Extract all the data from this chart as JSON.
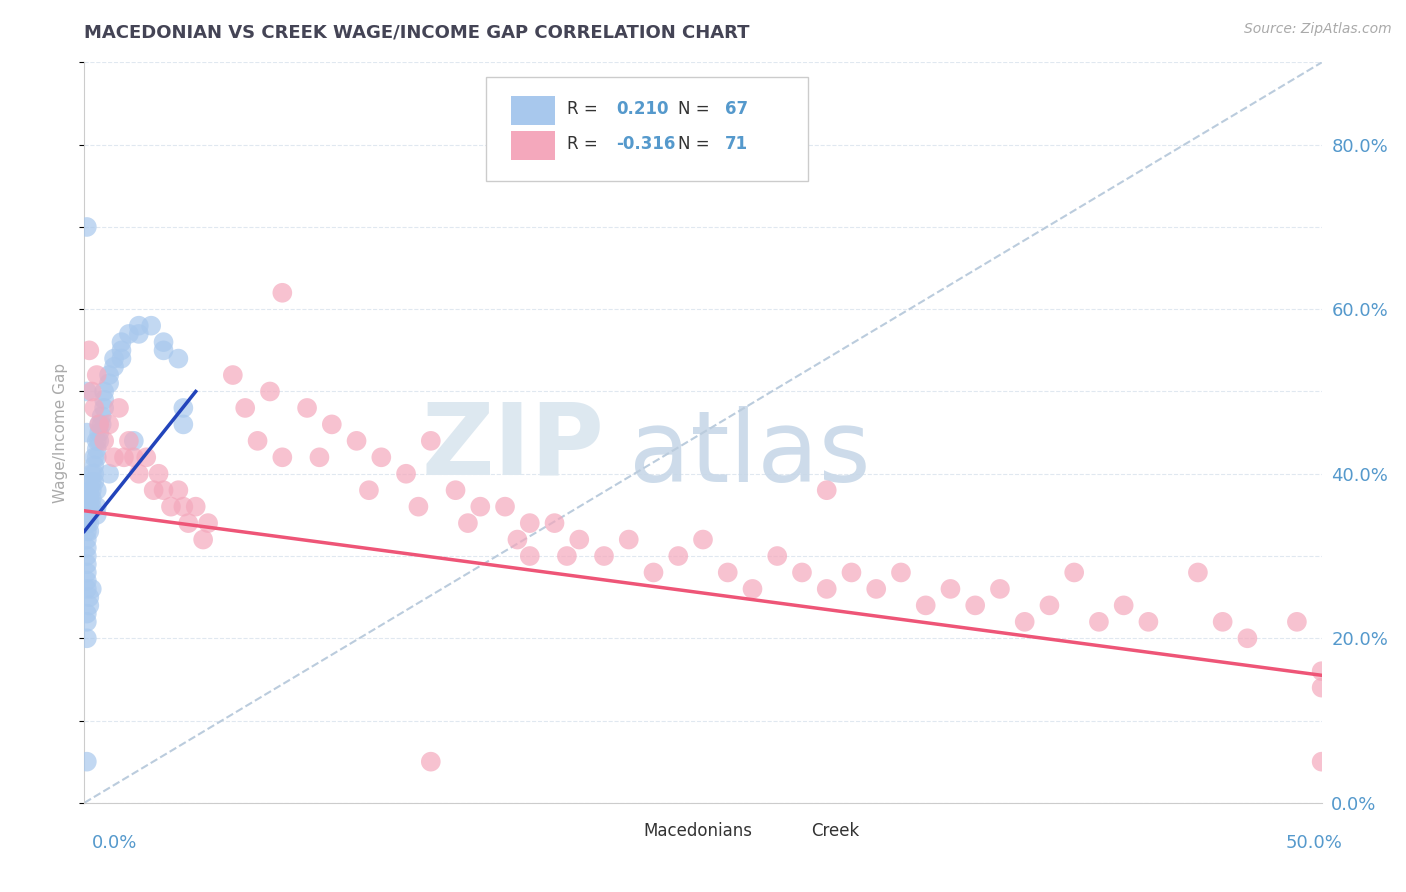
{
  "title": "MACEDONIAN VS CREEK WAGE/INCOME GAP CORRELATION CHART",
  "source": "Source: ZipAtlas.com",
  "ylabel": "Wage/Income Gap",
  "right_ytick_vals": [
    0.0,
    0.2,
    0.4,
    0.6,
    0.8
  ],
  "xlim": [
    0.0,
    0.5
  ],
  "ylim": [
    0.0,
    0.9
  ],
  "macedonian_color": "#a8c8ed",
  "creek_color": "#f4a8bc",
  "macedonian_trend_color": "#2244bb",
  "creek_trend_color": "#ee5577",
  "ref_line_color": "#bbccdd",
  "background_color": "#ffffff",
  "grid_color": "#e0e8f0",
  "title_color": "#444455",
  "axis_label_color": "#5599cc",
  "legend_text_color": "#5599cc",
  "watermark_zip_color": "#dde8f0",
  "watermark_atlas_color": "#c8d8e8",
  "macedonian_scatter_x": [
    0.001,
    0.001,
    0.001,
    0.001,
    0.001,
    0.001,
    0.001,
    0.001,
    0.001,
    0.001,
    0.002,
    0.002,
    0.002,
    0.002,
    0.002,
    0.002,
    0.003,
    0.003,
    0.003,
    0.003,
    0.003,
    0.004,
    0.004,
    0.004,
    0.004,
    0.005,
    0.005,
    0.005,
    0.006,
    0.006,
    0.006,
    0.007,
    0.007,
    0.008,
    0.008,
    0.008,
    0.01,
    0.01,
    0.012,
    0.012,
    0.015,
    0.015,
    0.015,
    0.018,
    0.022,
    0.022,
    0.027,
    0.032,
    0.032,
    0.038,
    0.001,
    0.001,
    0.001,
    0.002,
    0.002,
    0.003,
    0.04,
    0.04,
    0.02,
    0.01,
    0.005,
    0.005,
    0.005,
    0.001,
    0.001,
    0.001,
    0.001
  ],
  "macedonian_scatter_y": [
    0.36,
    0.34,
    0.33,
    0.32,
    0.31,
    0.3,
    0.29,
    0.28,
    0.27,
    0.26,
    0.38,
    0.37,
    0.36,
    0.35,
    0.34,
    0.33,
    0.4,
    0.39,
    0.38,
    0.37,
    0.36,
    0.42,
    0.41,
    0.4,
    0.39,
    0.44,
    0.43,
    0.42,
    0.46,
    0.45,
    0.44,
    0.47,
    0.46,
    0.5,
    0.49,
    0.48,
    0.52,
    0.51,
    0.54,
    0.53,
    0.56,
    0.55,
    0.54,
    0.57,
    0.58,
    0.57,
    0.58,
    0.56,
    0.55,
    0.54,
    0.05,
    0.22,
    0.23,
    0.24,
    0.25,
    0.26,
    0.48,
    0.46,
    0.44,
    0.4,
    0.38,
    0.36,
    0.35,
    0.7,
    0.5,
    0.45,
    0.2
  ],
  "creek_scatter_x": [
    0.002,
    0.003,
    0.004,
    0.005,
    0.006,
    0.008,
    0.01,
    0.012,
    0.014,
    0.016,
    0.018,
    0.02,
    0.022,
    0.025,
    0.028,
    0.03,
    0.032,
    0.035,
    0.038,
    0.04,
    0.042,
    0.045,
    0.048,
    0.05,
    0.06,
    0.065,
    0.07,
    0.075,
    0.08,
    0.09,
    0.095,
    0.1,
    0.11,
    0.115,
    0.12,
    0.13,
    0.135,
    0.14,
    0.15,
    0.155,
    0.16,
    0.17,
    0.175,
    0.18,
    0.19,
    0.195,
    0.2,
    0.21,
    0.22,
    0.23,
    0.24,
    0.25,
    0.26,
    0.27,
    0.28,
    0.29,
    0.3,
    0.31,
    0.32,
    0.33,
    0.34,
    0.35,
    0.36,
    0.37,
    0.38,
    0.39,
    0.4,
    0.41,
    0.42,
    0.43,
    0.45,
    0.46,
    0.47,
    0.49,
    0.5
  ],
  "creek_scatter_y": [
    0.55,
    0.5,
    0.48,
    0.52,
    0.46,
    0.44,
    0.46,
    0.42,
    0.48,
    0.42,
    0.44,
    0.42,
    0.4,
    0.42,
    0.38,
    0.4,
    0.38,
    0.36,
    0.38,
    0.36,
    0.34,
    0.36,
    0.32,
    0.34,
    0.52,
    0.48,
    0.44,
    0.5,
    0.42,
    0.48,
    0.42,
    0.46,
    0.44,
    0.38,
    0.42,
    0.4,
    0.36,
    0.44,
    0.38,
    0.34,
    0.36,
    0.36,
    0.32,
    0.34,
    0.34,
    0.3,
    0.32,
    0.3,
    0.32,
    0.28,
    0.3,
    0.32,
    0.28,
    0.26,
    0.3,
    0.28,
    0.26,
    0.28,
    0.26,
    0.28,
    0.24,
    0.26,
    0.24,
    0.26,
    0.22,
    0.24,
    0.28,
    0.22,
    0.24,
    0.22,
    0.28,
    0.22,
    0.2,
    0.22,
    0.14
  ],
  "creek_extra_x": [
    0.14,
    0.5,
    0.5,
    0.3,
    0.18,
    0.08
  ],
  "creek_extra_y": [
    0.05,
    0.16,
    0.05,
    0.38,
    0.3,
    0.62
  ],
  "mac_trend_x": [
    0.0,
    0.045
  ],
  "mac_trend_y": [
    0.33,
    0.5
  ],
  "creek_trend_x": [
    0.0,
    0.5
  ],
  "creek_trend_y": [
    0.355,
    0.155
  ],
  "ref_line_x": [
    0.0,
    0.5
  ],
  "ref_line_y": [
    0.0,
    0.9
  ]
}
